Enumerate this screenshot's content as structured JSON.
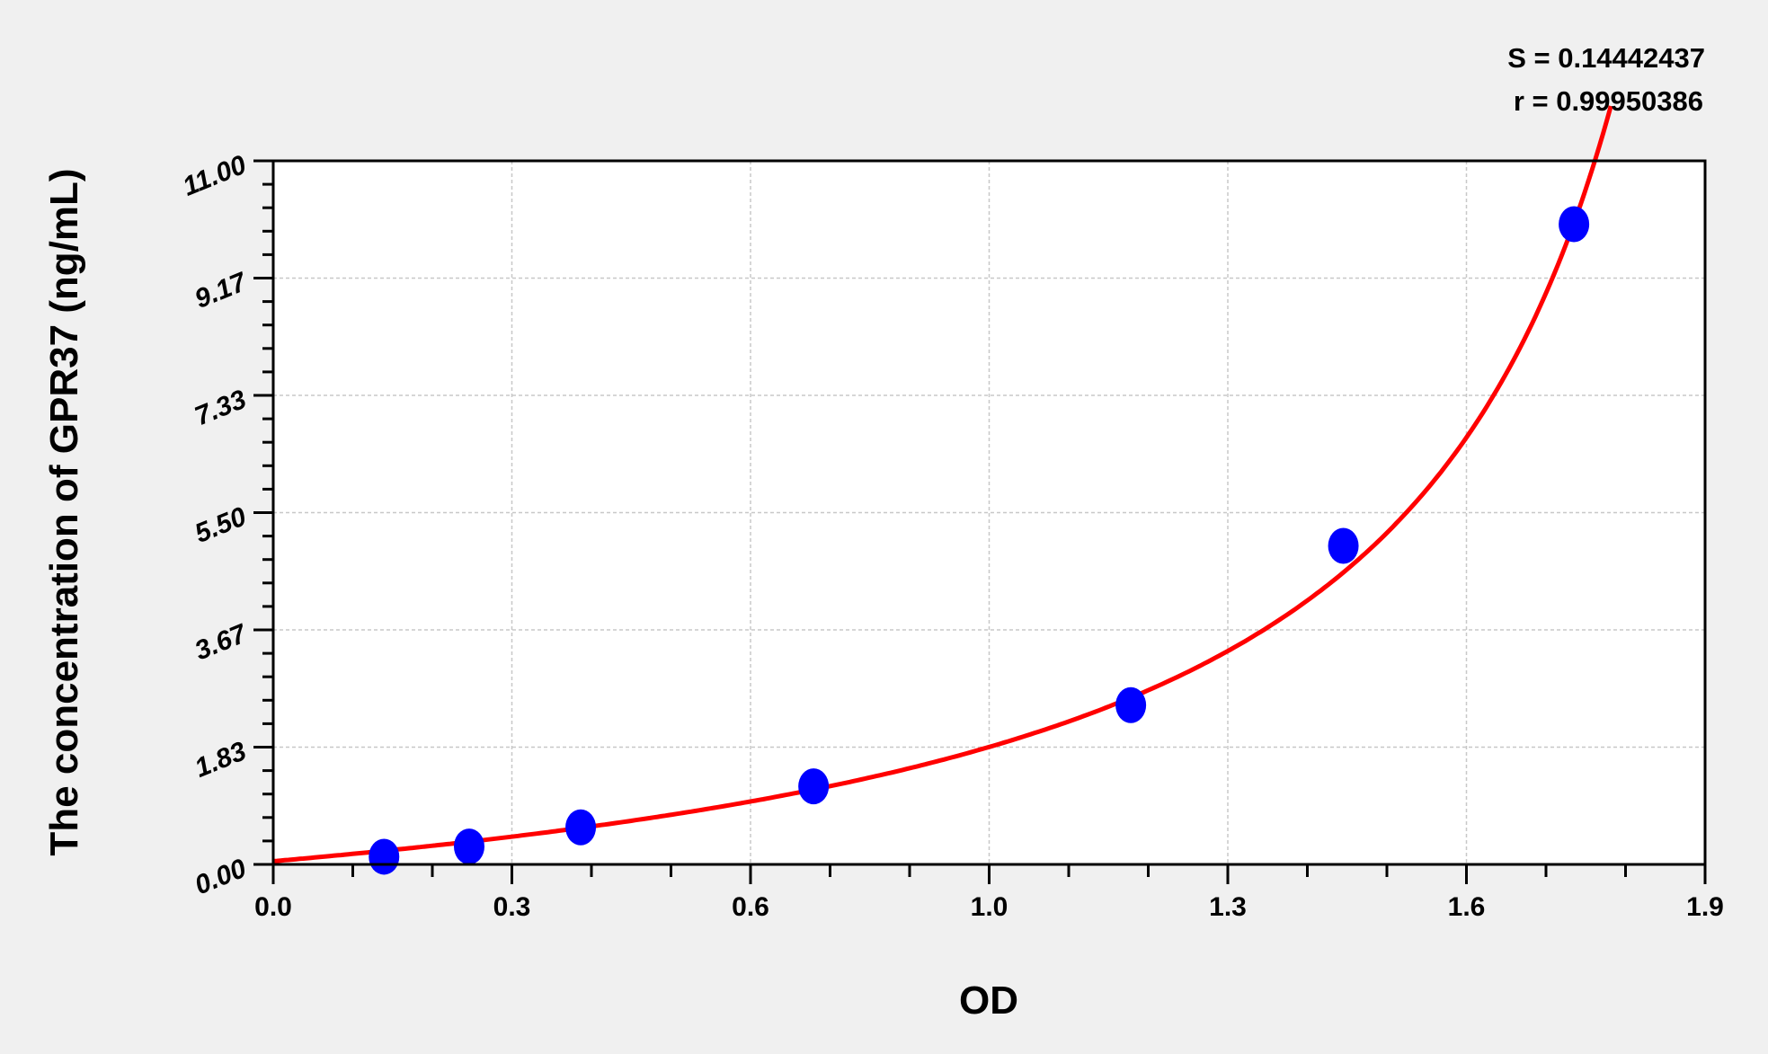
{
  "chart_data": {
    "type": "scatter",
    "title": "",
    "xlabel": "OD",
    "ylabel": "The concentration of GPR37 (ng/mL)",
    "xlim": [
      0,
      1.9
    ],
    "ylim": [
      0,
      11
    ],
    "x_tick_labels": [
      "0.0",
      "0.3",
      "0.6",
      "1.0",
      "1.3",
      "1.6",
      "1.9"
    ],
    "y_tick_labels": [
      "0.00",
      "1.83",
      "3.67",
      "5.50",
      "7.33",
      "9.17",
      "11.00"
    ],
    "grid": true,
    "points": {
      "x": [
        0.147,
        0.26,
        0.408,
        0.717,
        1.138,
        1.42,
        1.726
      ],
      "y": [
        0.12,
        0.28,
        0.58,
        1.22,
        2.49,
        4.98,
        10.01
      ]
    },
    "fit_curve": {
      "color": "#ff0000"
    },
    "marker_color": "#0000ff",
    "annotations": {
      "s_text": "S = 0.14442437",
      "r_text": "r = 0.99950386"
    }
  }
}
